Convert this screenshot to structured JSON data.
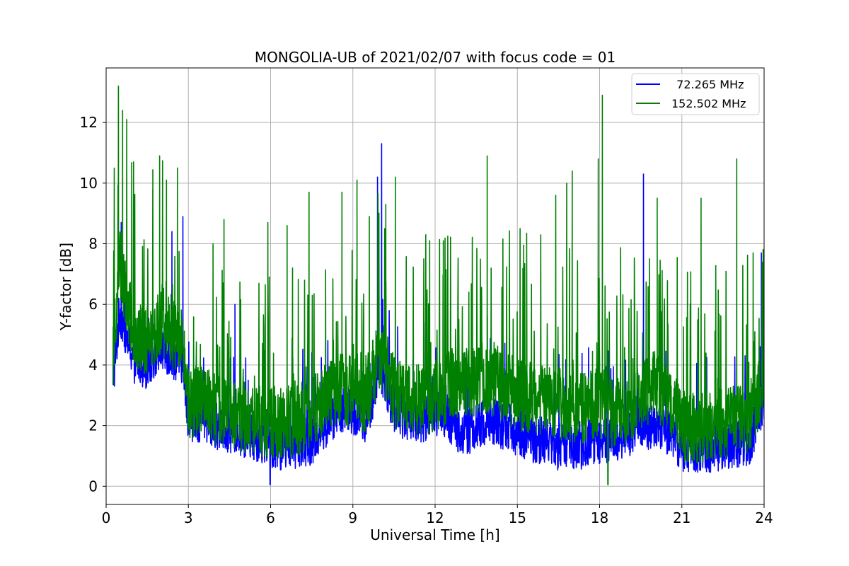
{
  "chart_data": {
    "type": "line",
    "title": "MONGOLIA-UB of 2021/02/07 with focus code = 01",
    "xlabel": "Universal Time [h]",
    "ylabel": "Y-factor [dB]",
    "xlim": [
      0,
      24
    ],
    "ylim": [
      -0.6,
      13.8
    ],
    "xticks": [
      0,
      3,
      6,
      9,
      12,
      15,
      18,
      21,
      24
    ],
    "yticks": [
      0,
      2,
      4,
      6,
      8,
      10,
      12
    ],
    "grid": true,
    "legend_position": "top-right",
    "series": [
      {
        "name": "  72.265 MHz",
        "color": "#0000ff",
        "x": [
          0.25,
          0.5,
          0.75,
          1.0,
          1.5,
          2.0,
          2.5,
          2.8,
          3.0,
          3.5,
          4.0,
          4.5,
          5.0,
          5.5,
          6.0,
          6.5,
          7.0,
          7.5,
          8.0,
          8.5,
          9.0,
          9.5,
          10.0,
          10.5,
          11.0,
          11.5,
          12.0,
          12.5,
          13.0,
          13.5,
          14.0,
          14.5,
          15.0,
          15.5,
          16.0,
          16.5,
          17.0,
          17.5,
          18.0,
          18.5,
          19.0,
          19.5,
          20.0,
          20.5,
          21.0,
          21.5,
          22.0,
          22.5,
          23.0,
          23.5,
          24.0
        ],
        "y": [
          3.5,
          5.8,
          5.0,
          4.2,
          4.0,
          4.6,
          4.3,
          4.2,
          2.3,
          2.2,
          2.0,
          1.9,
          1.7,
          1.6,
          1.4,
          1.3,
          1.4,
          1.5,
          2.0,
          2.6,
          2.4,
          2.2,
          4.0,
          2.5,
          2.3,
          2.2,
          2.4,
          2.2,
          1.8,
          1.9,
          2.2,
          2.0,
          1.8,
          1.6,
          1.5,
          1.3,
          1.3,
          1.4,
          1.5,
          1.6,
          1.7,
          2.0,
          2.0,
          1.8,
          1.3,
          1.2,
          1.2,
          1.3,
          1.4,
          1.5,
          3.0
        ],
        "peaks": [
          {
            "x": 0.55,
            "y": 8.7
          },
          {
            "x": 2.4,
            "y": 8.4
          },
          {
            "x": 2.8,
            "y": 8.9
          },
          {
            "x": 4.7,
            "y": 6.0
          },
          {
            "x": 9.9,
            "y": 10.2
          },
          {
            "x": 10.05,
            "y": 11.3
          },
          {
            "x": 19.6,
            "y": 10.3
          },
          {
            "x": 23.9,
            "y": 7.7
          }
        ],
        "min": {
          "x": 5.98,
          "y": 0.0
        }
      },
      {
        "name": "152.502 MHz",
        "color": "#008000",
        "x": [
          0.25,
          0.5,
          0.75,
          1.0,
          1.5,
          2.0,
          2.5,
          2.8,
          3.0,
          3.5,
          4.0,
          4.5,
          5.0,
          5.5,
          6.0,
          6.5,
          7.0,
          7.5,
          8.0,
          8.5,
          9.0,
          9.5,
          10.0,
          10.5,
          11.0,
          11.5,
          12.0,
          12.5,
          13.0,
          13.5,
          14.0,
          14.5,
          15.0,
          15.5,
          16.0,
          16.5,
          17.0,
          17.5,
          18.0,
          18.5,
          19.0,
          19.5,
          20.0,
          20.5,
          21.0,
          21.5,
          22.0,
          22.5,
          23.0,
          23.5,
          24.0
        ],
        "y": [
          4.5,
          7.5,
          6.0,
          5.2,
          4.8,
          5.5,
          5.0,
          5.0,
          2.8,
          2.8,
          2.5,
          2.4,
          2.3,
          2.2,
          2.1,
          2.1,
          2.2,
          2.5,
          2.9,
          3.3,
          3.1,
          2.9,
          4.5,
          3.1,
          2.9,
          2.8,
          3.0,
          3.2,
          3.5,
          3.5,
          3.6,
          3.3,
          3.0,
          2.9,
          2.8,
          2.7,
          2.6,
          2.6,
          2.8,
          2.4,
          2.5,
          3.0,
          3.3,
          3.0,
          2.0,
          1.9,
          2.0,
          2.1,
          2.2,
          2.3,
          3.6
        ],
        "peaks": [
          {
            "x": 0.45,
            "y": 13.2
          },
          {
            "x": 0.6,
            "y": 12.4
          },
          {
            "x": 0.75,
            "y": 12.1
          },
          {
            "x": 1.0,
            "y": 10.7
          },
          {
            "x": 1.7,
            "y": 9.8
          },
          {
            "x": 1.95,
            "y": 10.9
          },
          {
            "x": 2.2,
            "y": 10.1
          },
          {
            "x": 2.6,
            "y": 10.5
          },
          {
            "x": 3.9,
            "y": 8.0
          },
          {
            "x": 4.3,
            "y": 8.8
          },
          {
            "x": 5.9,
            "y": 8.7
          },
          {
            "x": 6.6,
            "y": 8.6
          },
          {
            "x": 7.4,
            "y": 9.7
          },
          {
            "x": 8.6,
            "y": 9.7
          },
          {
            "x": 9.15,
            "y": 10.1
          },
          {
            "x": 9.6,
            "y": 8.9
          },
          {
            "x": 10.2,
            "y": 9.3
          },
          {
            "x": 10.55,
            "y": 10.2
          },
          {
            "x": 11.8,
            "y": 8.1
          },
          {
            "x": 12.3,
            "y": 8.1
          },
          {
            "x": 13.9,
            "y": 10.9
          },
          {
            "x": 15.1,
            "y": 8.5
          },
          {
            "x": 16.4,
            "y": 9.6
          },
          {
            "x": 16.8,
            "y": 10.0
          },
          {
            "x": 17.0,
            "y": 10.4
          },
          {
            "x": 17.95,
            "y": 10.8
          },
          {
            "x": 18.1,
            "y": 12.9
          },
          {
            "x": 20.1,
            "y": 9.5
          },
          {
            "x": 21.7,
            "y": 9.5
          },
          {
            "x": 23.0,
            "y": 10.8
          },
          {
            "x": 23.6,
            "y": 7.7
          }
        ],
        "min": {
          "x": 18.3,
          "y": 0.0
        }
      }
    ]
  }
}
